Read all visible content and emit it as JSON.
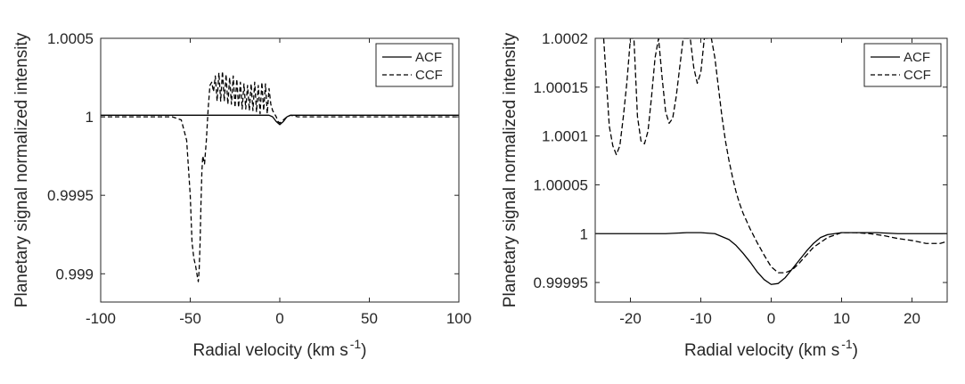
{
  "chart_data": [
    {
      "type": "line",
      "xlabel": "Radial velocity (km s",
      "xlabel_sup": "-1",
      "xlabel_end": ")",
      "ylabel": "Planetary signal normalized intensity",
      "xlim": [
        -100,
        100
      ],
      "ylim": [
        0.99882,
        1.0005
      ],
      "x_ticks": [
        -100,
        -50,
        0,
        50,
        100
      ],
      "x_tick_labels": [
        "-100",
        "-50",
        "0",
        "50",
        "100"
      ],
      "y_ticks": [
        0.999,
        0.9995,
        1,
        1.0005
      ],
      "y_tick_labels": [
        "0.999",
        "0.9995",
        "1",
        "1.0005"
      ],
      "grid": false,
      "legend_position": "top-right",
      "series": [
        {
          "name": "ACF",
          "style": "solid",
          "x": [
            -100,
            -60,
            -20,
            -10,
            -6,
            -4,
            -2,
            0,
            2,
            4,
            6,
            10,
            14,
            20,
            60,
            100
          ],
          "y": [
            1.00001,
            1.00001,
            1.00001,
            1.00001,
            1.00001,
            1.0,
            0.99997,
            0.99995,
            0.99997,
            1.0,
            1.00001,
            1.00001,
            1.00001,
            1.00001,
            1.00001,
            1.00001
          ]
        },
        {
          "name": "CCF",
          "style": "dashed",
          "x": [
            -100,
            -60,
            -55,
            -52,
            -50,
            -49,
            -48,
            -47,
            -46,
            -45.5,
            -45,
            -44.5,
            -44,
            -43.5,
            -43,
            -42,
            -41,
            -40,
            -39,
            -38,
            -37,
            -36,
            -35,
            -34,
            -33,
            -32,
            -31,
            -30,
            -29,
            -28,
            -27,
            -26,
            -25,
            -24,
            -23,
            -22,
            -21,
            -20,
            -19,
            -18,
            -17,
            -16,
            -15,
            -14,
            -13,
            -12,
            -11,
            -10,
            -9,
            -8,
            -7,
            -6,
            -5,
            -4,
            -3,
            -2,
            -1,
            0,
            2,
            4,
            6,
            10,
            20,
            60,
            100
          ],
          "y": [
            1.0,
            1.0,
            0.99998,
            0.99985,
            0.9995,
            0.9992,
            0.9991,
            0.99905,
            0.99898,
            0.99895,
            0.99903,
            0.9992,
            0.99945,
            0.99965,
            0.99975,
            0.9997,
            0.99985,
            1.00005,
            1.0002,
            1.00022,
            1.00016,
            1.00026,
            1.0001,
            1.00028,
            1.0001,
            1.00029,
            1.0001,
            1.00027,
            1.00008,
            1.00025,
            1.00008,
            1.00026,
            1.00006,
            1.00024,
            1.00006,
            1.00022,
            1.00005,
            1.00021,
            1.00005,
            1.0002,
            1.00004,
            1.00021,
            1.00004,
            1.00022,
            1.00003,
            1.0002,
            1.00002,
            1.00022,
            1.00004,
            1.00021,
            1.00002,
            1.00018,
            1.00008,
            1.00004,
            1.00002,
            1.0,
            0.99997,
            0.99996,
            0.99998,
            1.0,
            1.00001,
            1.0,
            1.0,
            1.0,
            1.0
          ]
        }
      ]
    },
    {
      "type": "line",
      "xlabel": "Radial velocity (km s",
      "xlabel_sup": "-1",
      "xlabel_end": ")",
      "ylabel": "Planetary signal normalized intensity",
      "xlim": [
        -25,
        25
      ],
      "ylim": [
        0.99993,
        1.0002
      ],
      "x_ticks": [
        -20,
        -10,
        0,
        10,
        20
      ],
      "x_tick_labels": [
        "-20",
        "-10",
        "0",
        "10",
        "20"
      ],
      "y_ticks": [
        0.99995,
        1,
        1.00005,
        1.0001,
        1.00015,
        1.0002
      ],
      "y_tick_labels": [
        "0.99995",
        "1",
        "1.00005",
        "1.0001",
        "1.00015",
        "1.0002"
      ],
      "grid": false,
      "legend_position": "top-right",
      "series": [
        {
          "name": "ACF",
          "style": "solid",
          "x": [
            -25,
            -22,
            -18,
            -15,
            -12,
            -10,
            -8,
            -6,
            -5,
            -4,
            -3,
            -2,
            -1,
            0,
            1,
            2,
            3,
            4,
            5,
            6,
            7,
            8,
            10,
            12,
            15,
            18,
            21,
            25
          ],
          "y": [
            1.0,
            1.0,
            1.0,
            1.0,
            1.000001,
            1.000001,
            1.0,
            0.999994,
            0.999988,
            0.99998,
            0.999971,
            0.999961,
            0.999953,
            0.999948,
            0.999949,
            0.999955,
            0.999964,
            0.999973,
            0.999982,
            0.99999,
            0.999996,
            0.999999,
            1.000001,
            1.000001,
            1.000001,
            1.0,
            1.0,
            1.0
          ]
        },
        {
          "name": "CCF",
          "style": "dashed",
          "x": [
            -23.8,
            -23,
            -22.5,
            -22,
            -21.5,
            -21,
            -20.5,
            -20,
            -19.5,
            -19,
            -18.5,
            -18,
            -17.5,
            -17,
            -16.5,
            -16,
            -15.5,
            -15,
            -14.5,
            -14,
            -13.5,
            -13,
            -12.5,
            -12,
            -11.5,
            -11,
            -10.5,
            -10,
            -9.5,
            -9.5,
            -8.5,
            -8,
            -7.5,
            -7,
            -6.5,
            -6,
            -5.5,
            -5,
            -4.5,
            -4,
            -3,
            -2,
            -1,
            0,
            1,
            2,
            3,
            4,
            5,
            6,
            8,
            10,
            12,
            14,
            16,
            18,
            20,
            22,
            24,
            25
          ],
          "y": [
            1.0002,
            1.00011,
            1.00009,
            1.000081,
            1.00009,
            1.00012,
            1.000155,
            1.0002,
            1.0002,
            1.00012,
            1.000095,
            1.000092,
            1.000105,
            1.00014,
            1.00018,
            1.0002,
            1.00016,
            1.000125,
            1.000113,
            1.000118,
            1.00014,
            1.00017,
            1.0002,
            1.0002,
            1.0002,
            1.00017,
            1.000154,
            1.000165,
            1.0002,
            1.0002,
            1.0002,
            1.00018,
            1.00015,
            1.00012,
            1.000095,
            1.000075,
            1.000058,
            1.000043,
            1.000031,
            1.000021,
            1.000005,
            0.999991,
            0.999978,
            0.999966,
            0.99996,
            0.99996,
            0.999963,
            0.99997,
            0.999978,
            0.999986,
            0.999996,
            1.000001,
            1.000001,
            1.0,
            0.999998,
            0.999995,
            0.999993,
            0.99999,
            0.99999,
            0.999992
          ]
        }
      ]
    }
  ]
}
